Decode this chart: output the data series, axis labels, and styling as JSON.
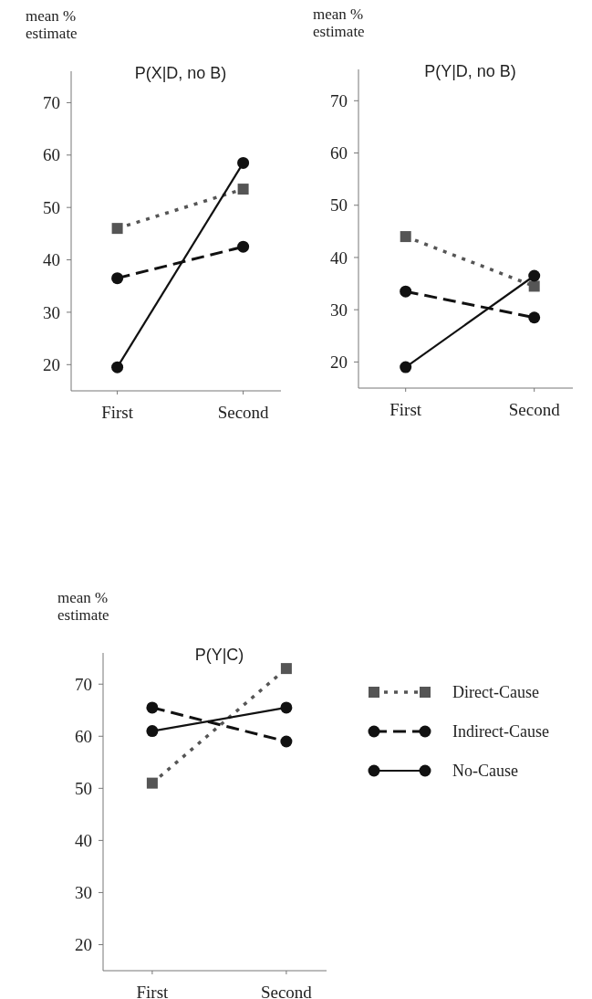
{
  "chart_data": [
    {
      "type": "line",
      "title": "P(X|D, no B)",
      "ylabel": "mean % estimate",
      "categories": [
        "First",
        "Second"
      ],
      "ylim": [
        15,
        76
      ],
      "yticks": [
        20,
        30,
        40,
        50,
        60,
        70
      ],
      "grid": false,
      "legend": false,
      "series": [
        {
          "color": "#555555",
          "values": [
            46,
            53.5
          ],
          "line_style": "dotted",
          "marker": "square"
        },
        {
          "color": "#111111",
          "values": [
            36.5,
            42.5
          ],
          "line_style": "dashed",
          "marker": "circle"
        },
        {
          "color": "#111111",
          "values": [
            19.5,
            58.5
          ],
          "line_style": "solid",
          "marker": "circle"
        }
      ]
    },
    {
      "type": "line",
      "title": "P(Y|D, no B)",
      "ylabel": "mean % estimate",
      "categories": [
        "First",
        "Second"
      ],
      "ylim": [
        15,
        76
      ],
      "yticks": [
        20,
        30,
        40,
        50,
        60,
        70
      ],
      "grid": false,
      "legend": false,
      "series": [
        {
          "color": "#555555",
          "values": [
            44,
            34.5
          ],
          "line_style": "dotted",
          "marker": "square"
        },
        {
          "color": "#111111",
          "values": [
            33.5,
            28.5
          ],
          "line_style": "dashed",
          "marker": "circle"
        },
        {
          "color": "#111111",
          "values": [
            19,
            36.5
          ],
          "line_style": "solid",
          "marker": "circle"
        }
      ]
    },
    {
      "type": "line",
      "title": "P(Y|C)",
      "ylabel": "mean % estimate",
      "categories": [
        "First",
        "Second"
      ],
      "ylim": [
        15,
        76
      ],
      "yticks": [
        20,
        30,
        40,
        50,
        60,
        70
      ],
      "grid": false,
      "legend": "right",
      "series": [
        {
          "name": "Direct-Cause",
          "color": "#555555",
          "values": [
            51,
            73
          ],
          "line_style": "dotted",
          "marker": "square"
        },
        {
          "name": "Indirect-Cause",
          "color": "#111111",
          "values": [
            65.5,
            59
          ],
          "line_style": "dashed",
          "marker": "circle"
        },
        {
          "name": "No-Cause",
          "color": "#111111",
          "values": [
            61,
            65.5
          ],
          "line_style": "solid",
          "marker": "circle"
        }
      ]
    }
  ]
}
